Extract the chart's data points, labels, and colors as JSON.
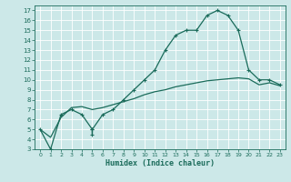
{
  "title": "",
  "xlabel": "Humidex (Indice chaleur)",
  "ylabel": "",
  "bg_color": "#cce8e8",
  "grid_color": "#ffffff",
  "line_color": "#1a6b5a",
  "xlim": [
    -0.5,
    23.5
  ],
  "ylim": [
    3,
    17.5
  ],
  "xticks": [
    0,
    1,
    2,
    3,
    4,
    5,
    6,
    7,
    8,
    9,
    10,
    11,
    12,
    13,
    14,
    15,
    16,
    17,
    18,
    19,
    20,
    21,
    22,
    23
  ],
  "yticks": [
    3,
    4,
    5,
    6,
    7,
    8,
    9,
    10,
    11,
    12,
    13,
    14,
    15,
    16,
    17
  ],
  "humidex_line": {
    "x": [
      0,
      1,
      2,
      3,
      4,
      5,
      5,
      5,
      6,
      7,
      8,
      9,
      10,
      11,
      12,
      13,
      14,
      15,
      16,
      17,
      18,
      19,
      20,
      21,
      22,
      23
    ],
    "y": [
      5,
      3,
      6.5,
      7,
      6.5,
      5,
      4.5,
      5,
      6.5,
      7,
      8,
      9,
      10,
      11,
      13,
      14.5,
      15,
      15,
      16.5,
      17,
      16.5,
      15,
      11,
      10,
      10,
      9.5
    ]
  },
  "smooth_line": {
    "x": [
      0,
      1,
      2,
      3,
      4,
      5,
      6,
      7,
      8,
      9,
      10,
      11,
      12,
      13,
      14,
      15,
      16,
      17,
      18,
      19,
      20,
      21,
      22,
      23
    ],
    "y": [
      5,
      4.2,
      6.2,
      7.2,
      7.3,
      7.0,
      7.2,
      7.5,
      7.8,
      8.1,
      8.5,
      8.8,
      9.0,
      9.3,
      9.5,
      9.7,
      9.9,
      10.0,
      10.1,
      10.2,
      10.1,
      9.5,
      9.7,
      9.4
    ]
  },
  "font_size_tick": 5,
  "font_size_xlabel": 6,
  "lw": 0.9
}
